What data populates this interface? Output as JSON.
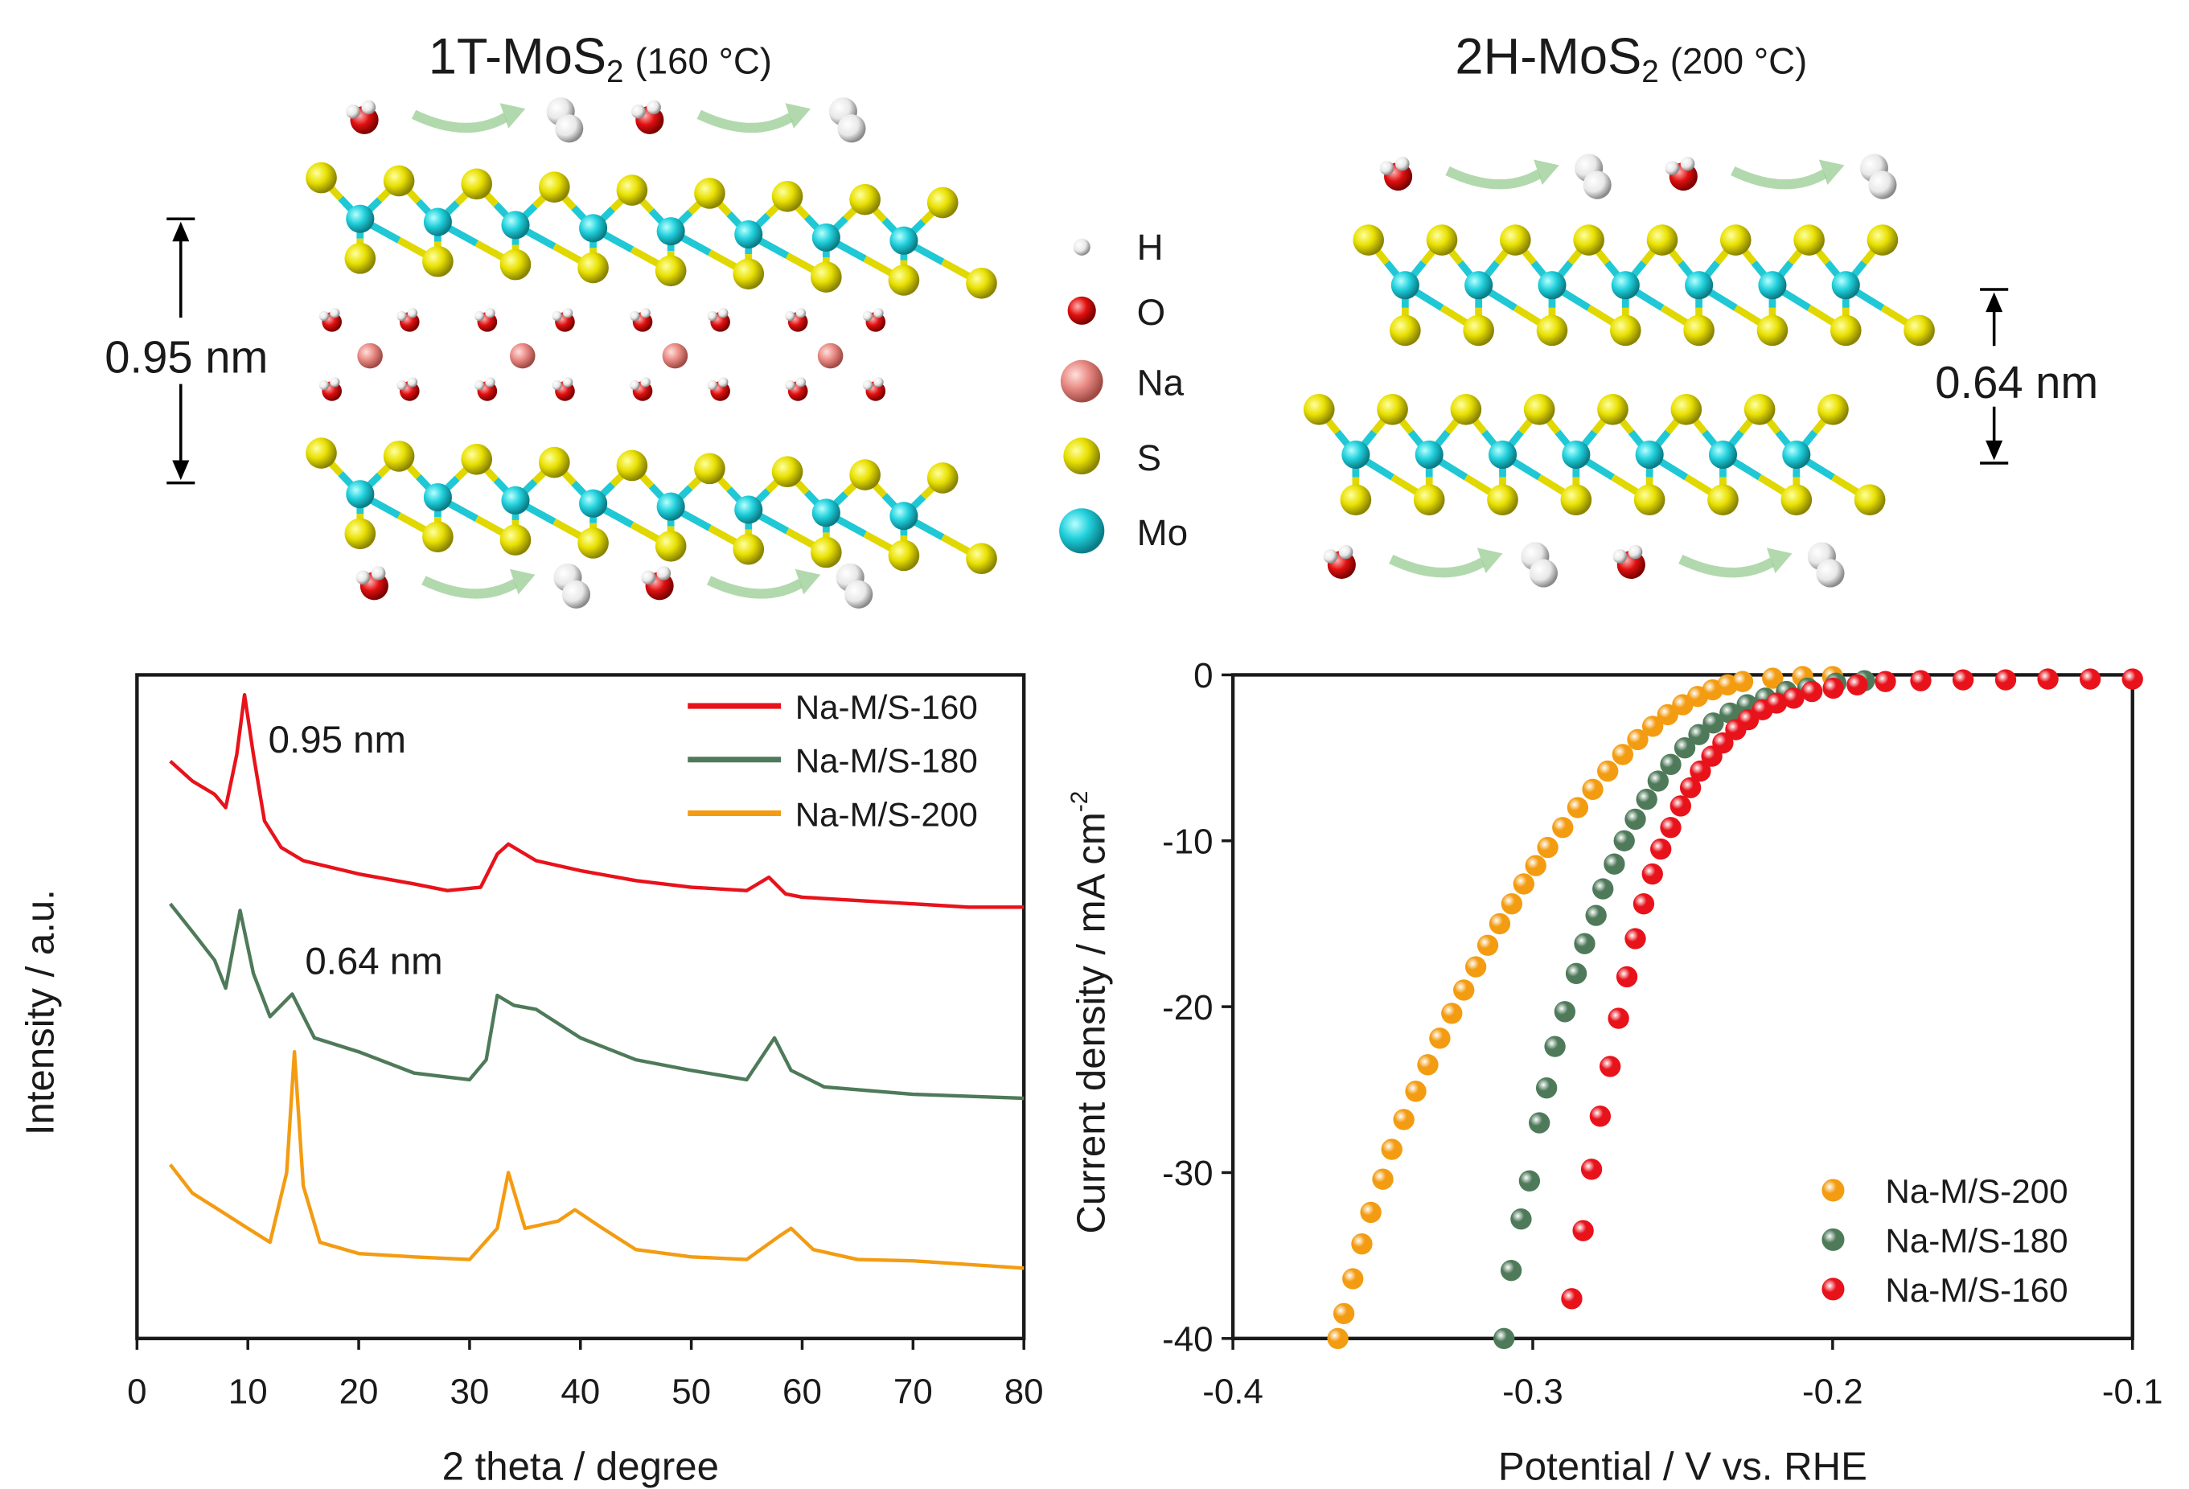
{
  "diagram": {
    "left_title": {
      "formula": "1T-MoS",
      "subscript": "2",
      "condition": "(160 °C)"
    },
    "right_title": {
      "formula": "2H-MoS",
      "subscript": "2",
      "condition": "(200 °C)"
    },
    "left_spacing": "0.95 nm",
    "right_spacing": "0.64 nm",
    "legend": [
      "H",
      "O",
      "Na",
      "S",
      "Mo"
    ]
  },
  "chart_data": [
    {
      "type": "line",
      "xlabel": "2 theta / degree",
      "ylabel": "Intensity / a.u.",
      "xlim": [
        0,
        80
      ],
      "xticks": [
        0,
        10,
        20,
        30,
        40,
        50,
        60,
        70,
        80
      ],
      "ylim": [
        0,
        100
      ],
      "annotations": [
        "0.95 nm",
        "0.64 nm"
      ],
      "legend": "upper right",
      "series": [
        {
          "name": "Na-M/S-160",
          "color": "#e8121b",
          "x": [
            3,
            5,
            7,
            8,
            9,
            9.7,
            10.5,
            11.5,
            13,
            15,
            20,
            25,
            28,
            31,
            32.5,
            33.5,
            36,
            40,
            45,
            50,
            55,
            57,
            58.5,
            60,
            65,
            70,
            75,
            80
          ],
          "values": [
            87,
            84,
            82,
            80,
            88,
            97,
            88,
            78,
            74,
            72,
            70,
            68.5,
            67.5,
            68,
            73,
            74.5,
            72,
            70.5,
            69,
            68,
            67.5,
            69.5,
            67,
            66.5,
            66,
            65.5,
            65,
            65
          ]
        },
        {
          "name": "Na-M/S-180",
          "color": "#4e7a5a",
          "x": [
            3,
            5,
            7,
            8,
            9.3,
            10.5,
            12,
            14,
            16,
            20,
            25,
            30,
            31.5,
            32.5,
            34,
            36,
            40,
            45,
            50,
            55,
            57.5,
            59,
            62,
            70,
            80
          ],
          "values": [
            65.5,
            61.3,
            57,
            52.8,
            64.5,
            55,
            48.5,
            51.9,
            45.3,
            43.2,
            40,
            39,
            42,
            51.7,
            50.2,
            49.6,
            45.3,
            42,
            40.4,
            39,
            45.3,
            40.4,
            37.9,
            36.8,
            36.2
          ]
        },
        {
          "name": "Na-M/S-200",
          "color": "#f39c12",
          "x": [
            3,
            5,
            7,
            10,
            12,
            13.5,
            14.2,
            15,
            16.5,
            20,
            25,
            30,
            32.5,
            33.5,
            35,
            38,
            39.5,
            42,
            45,
            50,
            55,
            58,
            59,
            61,
            65,
            70,
            80
          ],
          "values": [
            26.2,
            21.9,
            19.8,
            16.6,
            14.5,
            25,
            43.2,
            23,
            14.5,
            12.8,
            12.3,
            11.9,
            16.6,
            25,
            16.6,
            17.7,
            19.4,
            16.6,
            13.4,
            12.3,
            11.9,
            15.5,
            16.6,
            13.4,
            11.9,
            11.7,
            10.6
          ]
        }
      ]
    },
    {
      "type": "scatter",
      "xlabel": "Potential / V vs. RHE",
      "ylabel": "Current density / mA cm",
      "ylabel_superscript": "-2",
      "xlim": [
        -0.4,
        -0.1
      ],
      "xticks": [
        -0.4,
        -0.3,
        -0.2,
        -0.1
      ],
      "ylim": [
        -40,
        0
      ],
      "yticks": [
        -40,
        -30,
        -20,
        -10,
        0
      ],
      "legend": "lower right",
      "series": [
        {
          "name": "Na-M/S-200",
          "color": "#f39c12",
          "x": [
            -0.365,
            -0.363,
            -0.36,
            -0.357,
            -0.354,
            -0.35,
            -0.347,
            -0.343,
            -0.339,
            -0.335,
            -0.331,
            -0.327,
            -0.323,
            -0.319,
            -0.315,
            -0.311,
            -0.307,
            -0.303,
            -0.299,
            -0.295,
            -0.29,
            -0.285,
            -0.28,
            -0.275,
            -0.27,
            -0.265,
            -0.26,
            -0.255,
            -0.25,
            -0.245,
            -0.24,
            -0.235,
            -0.23,
            -0.22,
            -0.21,
            -0.2
          ],
          "values": [
            -40,
            -38.5,
            -36.4,
            -34.3,
            -32.4,
            -30.4,
            -28.6,
            -26.8,
            -25.1,
            -23.5,
            -21.9,
            -20.4,
            -19,
            -17.6,
            -16.3,
            -15,
            -13.8,
            -12.6,
            -11.5,
            -10.4,
            -9.2,
            -8,
            -6.9,
            -5.8,
            -4.8,
            -3.9,
            -3.1,
            -2.4,
            -1.8,
            -1.3,
            -0.9,
            -0.6,
            -0.4,
            -0.2,
            -0.1,
            -0.1
          ]
        },
        {
          "name": "Na-M/S-180",
          "color": "#4e7a5a",
          "x": [
            -0.3096,
            -0.3072,
            -0.3039,
            -0.3011,
            -0.2978,
            -0.2954,
            -0.2926,
            -0.2893,
            -0.2855,
            -0.2827,
            -0.2789,
            -0.2766,
            -0.2728,
            -0.2695,
            -0.2658,
            -0.262,
            -0.2582,
            -0.254,
            -0.2493,
            -0.2446,
            -0.2398,
            -0.2342,
            -0.2285,
            -0.2224,
            -0.2154,
            -0.2083,
            -0.1989,
            -0.1894
          ],
          "values": [
            -40,
            -35.9,
            -32.8,
            -30.5,
            -27,
            -24.9,
            -22.4,
            -20.3,
            -18,
            -16.2,
            -14.5,
            -12.9,
            -11.4,
            -10,
            -8.7,
            -7.5,
            -6.4,
            -5.4,
            -4.4,
            -3.6,
            -2.9,
            -2.3,
            -1.8,
            -1.4,
            -1,
            -0.8,
            -0.5,
            -0.35
          ]
        },
        {
          "name": "Na-M/S-160",
          "color": "#e8121b",
          "x": [
            -0.287,
            -0.2832,
            -0.2804,
            -0.2775,
            -0.2742,
            -0.2714,
            -0.2686,
            -0.2658,
            -0.263,
            -0.2601,
            -0.2573,
            -0.254,
            -0.2507,
            -0.2474,
            -0.2441,
            -0.2403,
            -0.2366,
            -0.2323,
            -0.2281,
            -0.2234,
            -0.2187,
            -0.213,
            -0.2069,
            -0.1998,
            -0.1918,
            -0.1824,
            -0.1706,
            -0.1565,
            -0.1423,
            -0.1282,
            -0.1141,
            -0.1
          ],
          "values": [
            -37.6,
            -33.5,
            -29.8,
            -26.6,
            -23.6,
            -20.7,
            -18.2,
            -15.9,
            -13.8,
            -12,
            -10.5,
            -9.2,
            -7.9,
            -6.8,
            -5.8,
            -4.9,
            -4.1,
            -3.3,
            -2.7,
            -2.1,
            -1.7,
            -1.4,
            -1,
            -0.8,
            -0.6,
            -0.4,
            -0.35,
            -0.3,
            -0.3,
            -0.25,
            -0.25,
            -0.25
          ]
        }
      ]
    }
  ]
}
